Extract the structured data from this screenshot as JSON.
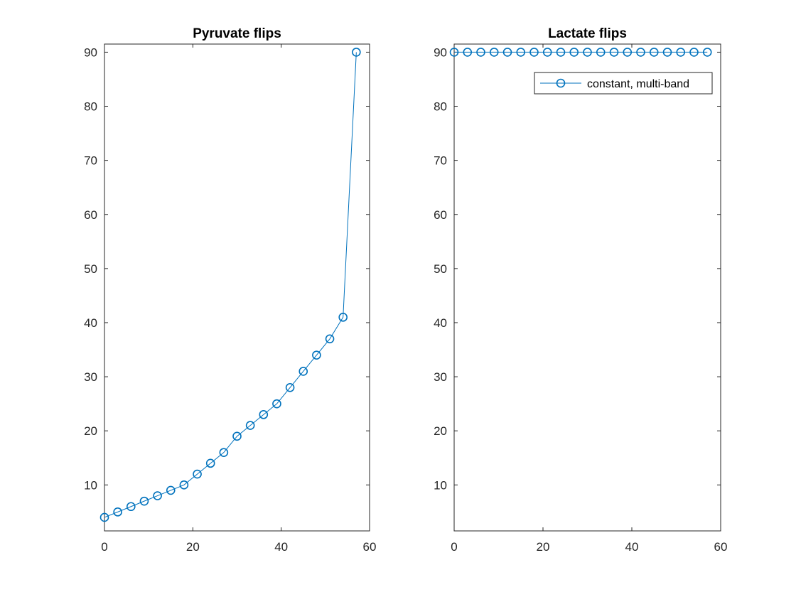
{
  "chart_data": [
    {
      "type": "line",
      "title": "Pyruvate flips",
      "xlabel": "",
      "ylabel": "",
      "xlim": [
        0,
        60
      ],
      "ylim": [
        1.5,
        91.5
      ],
      "xticks": [
        0,
        20,
        40,
        60
      ],
      "yticks": [
        10,
        20,
        30,
        40,
        50,
        60,
        70,
        80,
        90
      ],
      "marker": "circle",
      "grid": false,
      "series": [
        {
          "x": [
            0,
            3,
            6,
            9,
            12,
            15,
            18,
            21,
            24,
            27,
            30,
            33,
            36,
            39,
            42,
            45,
            48,
            51,
            54,
            57
          ],
          "y": [
            4,
            5,
            6,
            7,
            8,
            9,
            10,
            12,
            14,
            16,
            19,
            21,
            23,
            25,
            28,
            31,
            34,
            37,
            41,
            90
          ],
          "color": "#0072BD"
        }
      ]
    },
    {
      "type": "line",
      "title": "Lactate flips",
      "xlabel": "",
      "ylabel": "",
      "xlim": [
        0,
        60
      ],
      "ylim": [
        1.5,
        91.5
      ],
      "xticks": [
        0,
        20,
        40,
        60
      ],
      "yticks": [
        10,
        20,
        30,
        40,
        50,
        60,
        70,
        80,
        90
      ],
      "marker": "circle",
      "grid": false,
      "legend_position": "top-right",
      "series": [
        {
          "name": "constant, multi-band",
          "x": [
            0,
            3,
            6,
            9,
            12,
            15,
            18,
            21,
            24,
            27,
            30,
            33,
            36,
            39,
            42,
            45,
            48,
            51,
            54,
            57
          ],
          "y": [
            90,
            90,
            90,
            90,
            90,
            90,
            90,
            90,
            90,
            90,
            90,
            90,
            90,
            90,
            90,
            90,
            90,
            90,
            90,
            90
          ],
          "color": "#0072BD"
        }
      ]
    }
  ]
}
